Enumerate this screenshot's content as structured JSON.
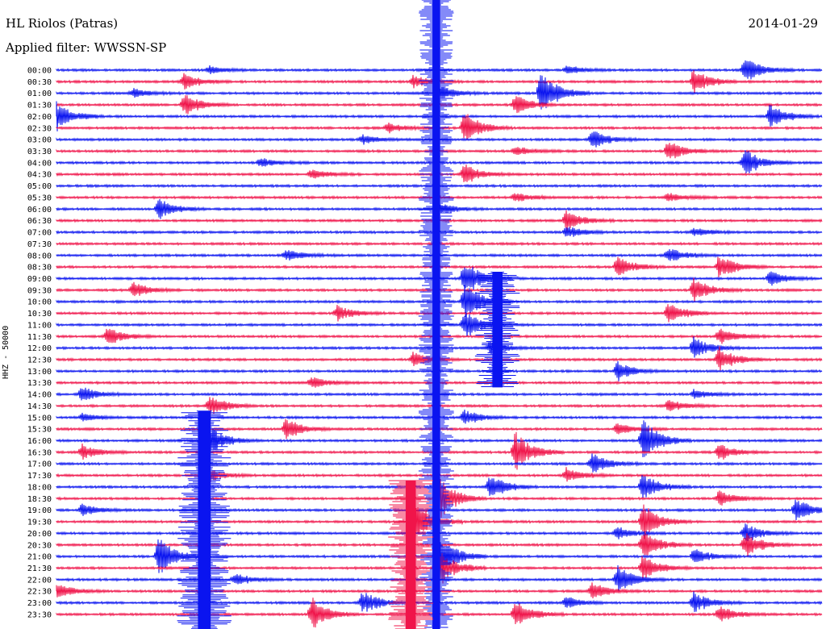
{
  "header": {
    "station": "HL Riolos (Patras)",
    "date": "2014-01-29",
    "filter": "Applied filter: WWSSN-SP",
    "channel_label": "HHZ - 50000"
  },
  "colors": {
    "blue": "#0a14f0",
    "red": "#f0144a",
    "background": "#ffffff"
  },
  "chart_data": {
    "type": "line",
    "title": "HL Riolos (Patras)",
    "subtitle": "Applied filter: WWSSN-SP",
    "ylabel": "HHZ - 50000",
    "xlabel": "",
    "grid": false,
    "legend": "none",
    "row_interval_minutes": 30,
    "y_tick_labels": [
      "00:00",
      "00:30",
      "01:00",
      "01:30",
      "02:00",
      "02:30",
      "03:00",
      "03:30",
      "04:00",
      "04:30",
      "05:00",
      "05:30",
      "06:00",
      "06:30",
      "07:00",
      "07:30",
      "08:00",
      "08:30",
      "09:00",
      "09:30",
      "10:00",
      "10:30",
      "11:00",
      "11:30",
      "12:00",
      "12:30",
      "13:00",
      "13:30",
      "14:00",
      "14:30",
      "15:00",
      "15:30",
      "16:00",
      "16:30",
      "17:00",
      "17:30",
      "18:00",
      "18:30",
      "19:00",
      "19:30",
      "20:00",
      "20:30",
      "21:00",
      "21:30",
      "22:00",
      "22:30",
      "23:00",
      "23:30"
    ],
    "series_colors_alternating": [
      "#0a14f0",
      "#f0144a"
    ],
    "events": [
      {
        "row": 0,
        "minute": 6,
        "amp": 5
      },
      {
        "row": 0,
        "minute": 20,
        "amp": 6
      },
      {
        "row": 0,
        "minute": 27,
        "amp": 18
      },
      {
        "row": 1,
        "minute": 5,
        "amp": 10
      },
      {
        "row": 1,
        "minute": 14,
        "amp": 8
      },
      {
        "row": 1,
        "minute": 25,
        "amp": 16
      },
      {
        "row": 2,
        "minute": 3,
        "amp": 6
      },
      {
        "row": 2,
        "minute": 15,
        "amp": 10
      },
      {
        "row": 2,
        "minute": 19,
        "amp": 30
      },
      {
        "row": 3,
        "minute": 5,
        "amp": 14
      },
      {
        "row": 3,
        "minute": 18,
        "amp": 12
      },
      {
        "row": 4,
        "minute": 0,
        "amp": 18
      },
      {
        "row": 4,
        "minute": 28,
        "amp": 16
      },
      {
        "row": 5,
        "minute": 16,
        "amp": 22
      },
      {
        "row": 5,
        "minute": 13,
        "amp": 6
      },
      {
        "row": 6,
        "minute": 21,
        "amp": 12
      },
      {
        "row": 6,
        "minute": 12,
        "amp": 6
      },
      {
        "row": 7,
        "minute": 24,
        "amp": 14
      },
      {
        "row": 7,
        "minute": 18,
        "amp": 6
      },
      {
        "row": 8,
        "minute": 27,
        "amp": 18
      },
      {
        "row": 8,
        "minute": 8,
        "amp": 6
      },
      {
        "row": 9,
        "minute": 16,
        "amp": 14
      },
      {
        "row": 9,
        "minute": 10,
        "amp": 6
      },
      {
        "row": 11,
        "minute": 18,
        "amp": 6
      },
      {
        "row": 11,
        "minute": 24,
        "amp": 6
      },
      {
        "row": 12,
        "minute": 4,
        "amp": 14
      },
      {
        "row": 12,
        "minute": 15,
        "amp": 8
      },
      {
        "row": 13,
        "minute": 20,
        "amp": 12
      },
      {
        "row": 14,
        "minute": 20,
        "amp": 8
      },
      {
        "row": 14,
        "minute": 25,
        "amp": 6
      },
      {
        "row": 16,
        "minute": 9,
        "amp": 8
      },
      {
        "row": 16,
        "minute": 24,
        "amp": 10
      },
      {
        "row": 17,
        "minute": 22,
        "amp": 14
      },
      {
        "row": 17,
        "minute": 26,
        "amp": 16
      },
      {
        "row": 18,
        "minute": 16,
        "amp": 24
      },
      {
        "row": 18,
        "minute": 28,
        "amp": 10
      },
      {
        "row": 19,
        "minute": 3,
        "amp": 10
      },
      {
        "row": 19,
        "minute": 25,
        "amp": 16
      },
      {
        "row": 20,
        "minute": 16,
        "amp": 26
      },
      {
        "row": 21,
        "minute": 11,
        "amp": 10
      },
      {
        "row": 21,
        "minute": 24,
        "amp": 14
      },
      {
        "row": 22,
        "minute": 16,
        "amp": 18
      },
      {
        "row": 23,
        "minute": 2,
        "amp": 12
      },
      {
        "row": 23,
        "minute": 26,
        "amp": 10
      },
      {
        "row": 24,
        "minute": 17,
        "amp": 8
      },
      {
        "row": 24,
        "minute": 25,
        "amp": 14
      },
      {
        "row": 25,
        "minute": 14,
        "amp": 10
      },
      {
        "row": 25,
        "minute": 26,
        "amp": 16
      },
      {
        "row": 26,
        "minute": 22,
        "amp": 12
      },
      {
        "row": 27,
        "minute": 10,
        "amp": 8
      },
      {
        "row": 28,
        "minute": 1,
        "amp": 10
      },
      {
        "row": 28,
        "minute": 25,
        "amp": 6
      },
      {
        "row": 29,
        "minute": 6,
        "amp": 14
      },
      {
        "row": 29,
        "minute": 24,
        "amp": 8
      },
      {
        "row": 30,
        "minute": 1,
        "amp": 6
      },
      {
        "row": 30,
        "minute": 16,
        "amp": 10
      },
      {
        "row": 31,
        "minute": 9,
        "amp": 14
      },
      {
        "row": 31,
        "minute": 22,
        "amp": 8
      },
      {
        "row": 32,
        "minute": 6,
        "amp": 18
      },
      {
        "row": 32,
        "minute": 23,
        "amp": 30
      },
      {
        "row": 33,
        "minute": 1,
        "amp": 10
      },
      {
        "row": 33,
        "minute": 18,
        "amp": 26
      },
      {
        "row": 33,
        "minute": 26,
        "amp": 10
      },
      {
        "row": 34,
        "minute": 21,
        "amp": 14
      },
      {
        "row": 35,
        "minute": 6,
        "amp": 8
      },
      {
        "row": 35,
        "minute": 20,
        "amp": 10
      },
      {
        "row": 36,
        "minute": 17,
        "amp": 16
      },
      {
        "row": 36,
        "minute": 23,
        "amp": 18
      },
      {
        "row": 37,
        "minute": 15,
        "amp": 30
      },
      {
        "row": 37,
        "minute": 26,
        "amp": 10
      },
      {
        "row": 38,
        "minute": 1,
        "amp": 8
      },
      {
        "row": 38,
        "minute": 29,
        "amp": 16
      },
      {
        "row": 39,
        "minute": 14,
        "amp": 30
      },
      {
        "row": 39,
        "minute": 23,
        "amp": 24
      },
      {
        "row": 40,
        "minute": 22,
        "amp": 8
      },
      {
        "row": 40,
        "minute": 27,
        "amp": 12
      },
      {
        "row": 41,
        "minute": 27,
        "amp": 16
      },
      {
        "row": 41,
        "minute": 23,
        "amp": 20
      },
      {
        "row": 42,
        "minute": 4,
        "amp": 26
      },
      {
        "row": 42,
        "minute": 15,
        "amp": 30
      },
      {
        "row": 42,
        "minute": 25,
        "amp": 10
      },
      {
        "row": 43,
        "minute": 15,
        "amp": 24
      },
      {
        "row": 43,
        "minute": 23,
        "amp": 16
      },
      {
        "row": 44,
        "minute": 7,
        "amp": 8
      },
      {
        "row": 44,
        "minute": 22,
        "amp": 18
      },
      {
        "row": 45,
        "minute": 0,
        "amp": 10
      },
      {
        "row": 45,
        "minute": 21,
        "amp": 12
      },
      {
        "row": 46,
        "minute": 12,
        "amp": 16
      },
      {
        "row": 46,
        "minute": 20,
        "amp": 8
      },
      {
        "row": 46,
        "minute": 25,
        "amp": 14
      },
      {
        "row": 47,
        "minute": 10,
        "amp": 22
      },
      {
        "row": 47,
        "minute": 18,
        "amp": 18
      },
      {
        "row": 47,
        "minute": 26,
        "amp": 10
      }
    ],
    "large_events": [
      {
        "start_row": 0,
        "end_row": 47,
        "minute": 14.9,
        "width_minutes": 0.3,
        "color": "#0a14f0"
      },
      {
        "start_row": 30,
        "end_row": 47,
        "minute": 5.8,
        "width_minutes": 0.5,
        "color": "#0a14f0"
      },
      {
        "start_row": 36,
        "end_row": 47,
        "minute": 13.9,
        "width_minutes": 0.4,
        "color": "#f0144a"
      },
      {
        "start_row": 18,
        "end_row": 26,
        "minute": 17.3,
        "width_minutes": 0.4,
        "color": "#0a14f0"
      }
    ]
  }
}
